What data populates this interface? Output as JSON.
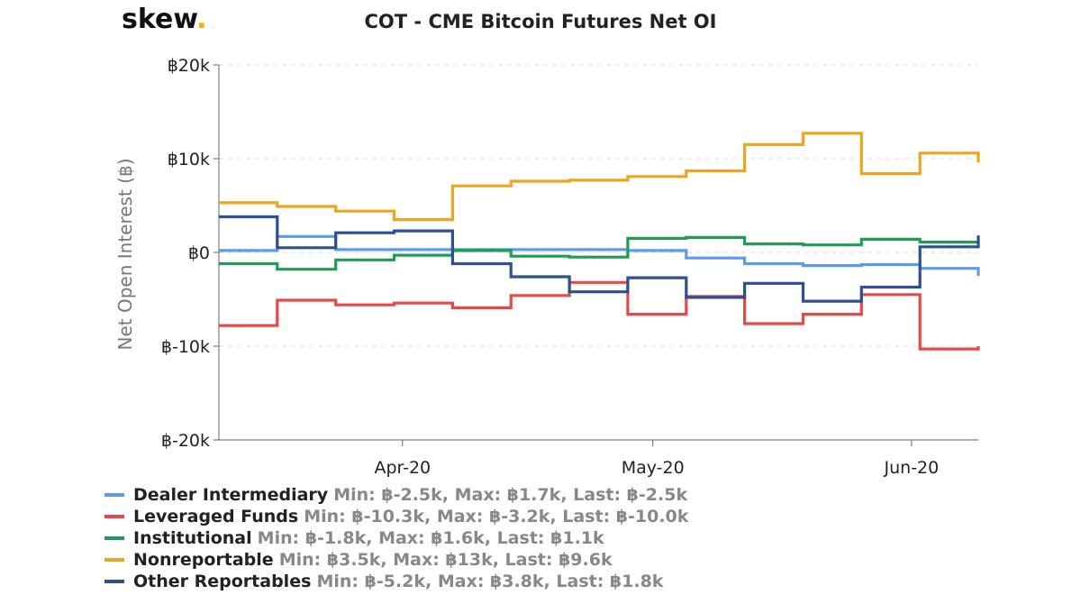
{
  "logo": {
    "text": "skew",
    "dot": ".",
    "dot_color": "#f5b400"
  },
  "chart_data": {
    "type": "line",
    "step": true,
    "title": "COT - CME Bitcoin Futures Net OI",
    "ylabel": "Net Open Interest (฿)",
    "xlabel": "",
    "ylim": [
      -20000,
      20000
    ],
    "y_ticks": [
      {
        "value": 20000,
        "label": "฿20k"
      },
      {
        "value": 10000,
        "label": "฿10k"
      },
      {
        "value": 0,
        "label": "฿0"
      },
      {
        "value": -10000,
        "label": "฿-10k"
      },
      {
        "value": -20000,
        "label": "฿-20k"
      }
    ],
    "x_range": [
      "2020-03-10",
      "2020-06-09"
    ],
    "x_ticks": [
      {
        "value": "2020-04-01",
        "label": "Apr-20"
      },
      {
        "value": "2020-05-01",
        "label": "May-20"
      },
      {
        "value": "2020-06-01",
        "label": "Jun-20"
      }
    ],
    "grid": true,
    "legend_position": "bottom-left",
    "x": [
      "2020-03-10",
      "2020-03-17",
      "2020-03-24",
      "2020-03-31",
      "2020-04-07",
      "2020-04-14",
      "2020-04-21",
      "2020-04-28",
      "2020-05-05",
      "2020-05-12",
      "2020-05-19",
      "2020-05-26",
      "2020-06-02",
      "2020-06-09"
    ],
    "series": [
      {
        "name": "Dealer Intermediary",
        "color": "#5b9bea",
        "values": [
          200,
          1700,
          300,
          300,
          300,
          300,
          300,
          200,
          -600,
          -1200,
          -1400,
          -1300,
          -1700,
          -2500
        ],
        "stats": "Min: ฿-2.5k, Max: ฿1.7k, Last: ฿-2.5k"
      },
      {
        "name": "Leveraged Funds",
        "color": "#ea4848",
        "values": [
          -7800,
          -5100,
          -5600,
          -5400,
          -5900,
          -4600,
          -3200,
          -6600,
          -4700,
          -7600,
          -6600,
          -4500,
          -10300,
          -10000
        ],
        "stats": "Min: ฿-10.3k, Max: ฿-3.2k, Last: ฿-10.0k"
      },
      {
        "name": "Institutional",
        "color": "#1f9d55",
        "values": [
          -1200,
          -1800,
          -800,
          -300,
          200,
          -400,
          -500,
          1500,
          1600,
          900,
          800,
          1400,
          1100,
          1100
        ],
        "stats": "Min: ฿-1.8k, Max: ฿1.6k, Last: ฿1.1k"
      },
      {
        "name": "Nonreportable",
        "color": "#e8a621",
        "values": [
          5300,
          4900,
          4400,
          3500,
          7100,
          7600,
          7700,
          8100,
          8700,
          11500,
          12700,
          8400,
          10600,
          9600
        ],
        "stats": "Min: ฿3.5k, Max: ฿13k, Last: ฿9.6k"
      },
      {
        "name": "Other Reportables",
        "color": "#2f4f8f",
        "values": [
          3800,
          500,
          2100,
          2300,
          -1200,
          -2600,
          -4200,
          -2700,
          -4800,
          -3300,
          -5200,
          -3700,
          600,
          1800
        ],
        "stats": "Min: ฿-5.2k, Max: ฿3.8k, Last: ฿1.8k"
      }
    ]
  }
}
